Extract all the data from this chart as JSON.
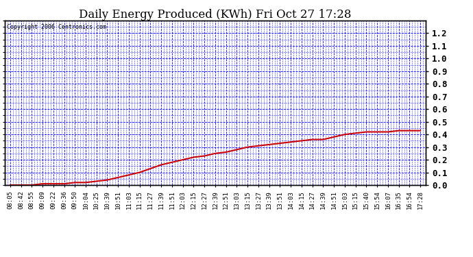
{
  "title": "Daily Energy Produced (KWh) Fri Oct 27 17:28",
  "copyright_text": "Copyright 2006 Centronics.com",
  "ylim": [
    0.0,
    1.3
  ],
  "yticks": [
    0.0,
    0.1,
    0.2,
    0.3,
    0.4,
    0.5,
    0.6,
    0.7,
    0.8,
    0.9,
    1.0,
    1.1,
    1.2
  ],
  "background_color": "#ffffff",
  "plot_bg_color": "#ffffff",
  "grid_color": "#0000ff",
  "line_color": "#cc0000",
  "x_labels": [
    "08:05",
    "08:42",
    "08:55",
    "09:09",
    "09:22",
    "09:36",
    "09:50",
    "10:04",
    "10:25",
    "10:39",
    "10:51",
    "11:03",
    "11:15",
    "11:27",
    "11:39",
    "11:51",
    "12:03",
    "12:15",
    "12:27",
    "12:39",
    "12:51",
    "13:03",
    "13:15",
    "13:27",
    "13:39",
    "13:51",
    "14:03",
    "14:15",
    "14:27",
    "14:39",
    "14:51",
    "15:03",
    "15:15",
    "15:40",
    "15:54",
    "16:07",
    "16:35",
    "16:54",
    "17:28"
  ],
  "y_values": [
    0.0,
    0.0,
    0.0,
    0.01,
    0.01,
    0.01,
    0.02,
    0.02,
    0.03,
    0.04,
    0.06,
    0.08,
    0.1,
    0.13,
    0.16,
    0.18,
    0.2,
    0.22,
    0.23,
    0.25,
    0.26,
    0.28,
    0.3,
    0.31,
    0.32,
    0.33,
    0.34,
    0.35,
    0.36,
    0.36,
    0.38,
    0.4,
    0.41,
    0.42,
    0.42,
    0.42,
    0.43,
    0.43,
    0.43
  ],
  "title_fontsize": 12,
  "tick_fontsize": 6.5,
  "copyright_fontsize": 6,
  "ytick_fontsize": 9
}
